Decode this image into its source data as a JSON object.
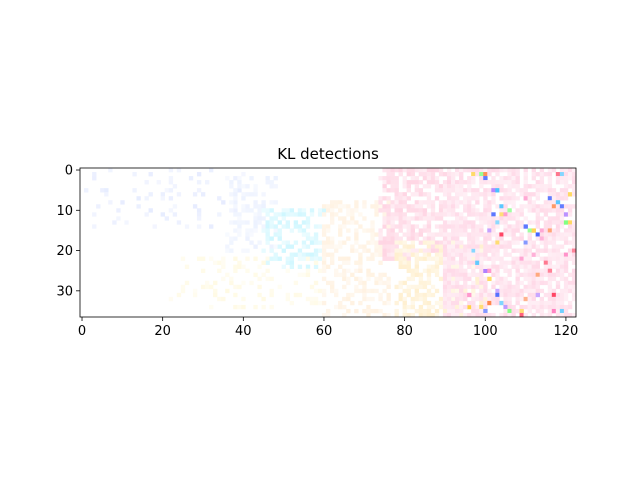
{
  "chart_data": {
    "type": "heatmap",
    "title": "KL detections",
    "xlabel": "",
    "ylabel": "",
    "xlim": [
      -0.5,
      122.5
    ],
    "ylim": [
      36.5,
      -0.5
    ],
    "x_ticks": [
      0,
      20,
      40,
      60,
      80,
      100,
      120
    ],
    "y_ticks": [
      0,
      10,
      20,
      30
    ],
    "grid": false,
    "legend": "none",
    "grid_size": {
      "columns": 123,
      "rows": 37
    },
    "regions": [
      {
        "name": "faint-blue-left",
        "x_range": [
          0,
          40
        ],
        "y_range": [
          0,
          14
        ],
        "color": "#b8c8ff",
        "density": 0.12,
        "intensity": 0.35
      },
      {
        "name": "light-blue-cluster",
        "x_range": [
          36,
          48
        ],
        "y_range": [
          2,
          20
        ],
        "color": "#c8d8ff",
        "density": 0.35,
        "intensity": 0.35
      },
      {
        "name": "cyan-cluster",
        "x_range": [
          45,
          60
        ],
        "y_range": [
          10,
          24
        ],
        "color": "#a8f0ff",
        "density": 0.45,
        "intensity": 0.55
      },
      {
        "name": "faint-yellow-bottom",
        "x_range": [
          22,
          60
        ],
        "y_range": [
          22,
          34
        ],
        "color": "#fff0b0",
        "density": 0.18,
        "intensity": 0.35
      },
      {
        "name": "peach-middle",
        "x_range": [
          60,
          76
        ],
        "y_range": [
          8,
          36
        ],
        "color": "#ffd8a8",
        "density": 0.45,
        "intensity": 0.35
      },
      {
        "name": "pink-cluster",
        "x_range": [
          74,
          92
        ],
        "y_range": [
          0,
          22
        ],
        "color": "#ffb8d0",
        "density": 0.7,
        "intensity": 0.6
      },
      {
        "name": "pink-yellow-mix",
        "x_range": [
          78,
          100
        ],
        "y_range": [
          18,
          36
        ],
        "color": "#ffe0a0",
        "density": 0.55,
        "intensity": 0.5
      },
      {
        "name": "dense-right",
        "x_range": [
          90,
          122
        ],
        "y_range": [
          0,
          36
        ],
        "color": "#ffc0d8",
        "density": 0.75,
        "intensity": 0.6
      }
    ],
    "accent_colors": [
      "#ff4060",
      "#4060ff",
      "#ff8040",
      "#ffd040",
      "#b080ff",
      "#40c0ff",
      "#80ff80",
      "#ff80c0"
    ]
  }
}
